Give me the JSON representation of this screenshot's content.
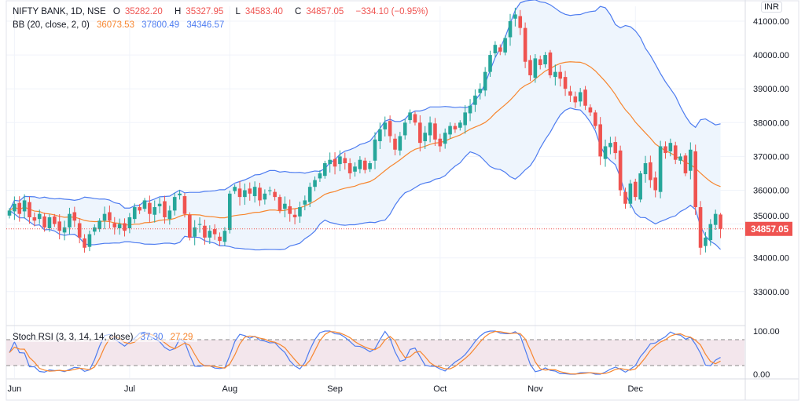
{
  "header": {
    "symbol": "NIFTY BANK, 1D, NSE",
    "open_label": "O",
    "open": "35282.20",
    "high_label": "H",
    "high": "35327.95",
    "low_label": "L",
    "low": "34583.40",
    "close_label": "C",
    "close": "34857.05",
    "change": "−334.10 (−0.95%)"
  },
  "bb_legend": {
    "label": "BB (20, close, 2, 0)",
    "basis": "36073.53",
    "upper": "37800.49",
    "lower": "34346.57"
  },
  "stoch_legend": {
    "label": "Stoch RSI (3, 3, 14, 14, close)",
    "k": "37.30",
    "d": "27.29"
  },
  "currency_button": "INR",
  "last_price_label": "34857.05",
  "colors": {
    "up": "#26a69a",
    "down": "#ef5350",
    "bb_band": "#4d7cf0",
    "bb_basis": "#f7862f",
    "stoch_k": "#4d7cf0",
    "stoch_d": "#f7862f"
  },
  "chart_data": {
    "type": "candlestick",
    "title": "NIFTY BANK, 1D, NSE",
    "price_ylim": [
      32600,
      41600
    ],
    "price_ticks": [
      "41000.00",
      "40000.00",
      "39000.00",
      "38000.00",
      "37000.00",
      "36000.00",
      "35000.00",
      "34000.00",
      "33000.00"
    ],
    "stoch_ticks": [
      "100.00",
      "0.00"
    ],
    "stoch_bands": [
      80,
      20
    ],
    "months": [
      {
        "label": "Jun",
        "index": 1
      },
      {
        "label": "Jul",
        "index": 24
      },
      {
        "label": "Aug",
        "index": 44
      },
      {
        "label": "Sep",
        "index": 65
      },
      {
        "label": "Oct",
        "index": 86
      },
      {
        "label": "Nov",
        "index": 105
      },
      {
        "label": "Dec",
        "index": 125
      }
    ],
    "last_candle": {
      "open": 35282.2,
      "high": 35327.95,
      "low": 34583.4,
      "close": 34857.05
    },
    "closes": [
      35400,
      35600,
      35300,
      35700,
      35200,
      35100,
      35300,
      34900,
      35200,
      35000,
      34800,
      34900,
      35300,
      35100,
      34600,
      34300,
      34700,
      34900,
      35100,
      35300,
      35100,
      34900,
      35000,
      34800,
      35200,
      35500,
      35400,
      35700,
      35300,
      35500,
      35600,
      35200,
      35400,
      35800,
      35900,
      35300,
      34600,
      34900,
      35000,
      34600,
      34800,
      34700,
      34500,
      34800,
      35900,
      36100,
      35800,
      36000,
      35900,
      36100,
      35700,
      35900,
      36000,
      35800,
      35400,
      35600,
      35300,
      35200,
      35500,
      35700,
      36100,
      36300,
      36500,
      36800,
      36900,
      36700,
      37000,
      36800,
      36500,
      36700,
      36900,
      36600,
      36800,
      37500,
      37800,
      38000,
      37600,
      37200,
      37600,
      38000,
      38300,
      38000,
      37400,
      37700,
      38000,
      37500,
      37300,
      37700,
      37900,
      37800,
      38000,
      38300,
      38500,
      38800,
      39000,
      39500,
      40000,
      40300,
      40100,
      40500,
      41000,
      41200,
      40800,
      39800,
      39400,
      39900,
      39700,
      40000,
      39400,
      39500,
      39300,
      39000,
      38800,
      38600,
      38900,
      38500,
      38300,
      37900,
      37000,
      37300,
      37400,
      37100,
      36000,
      35600,
      36200,
      35800,
      36500,
      36800,
      36300,
      36000,
      37300,
      37100,
      37400,
      36900,
      37000,
      36500,
      37200,
      35500,
      34300,
      34600,
      35000,
      35300,
      34857.05
    ]
  }
}
